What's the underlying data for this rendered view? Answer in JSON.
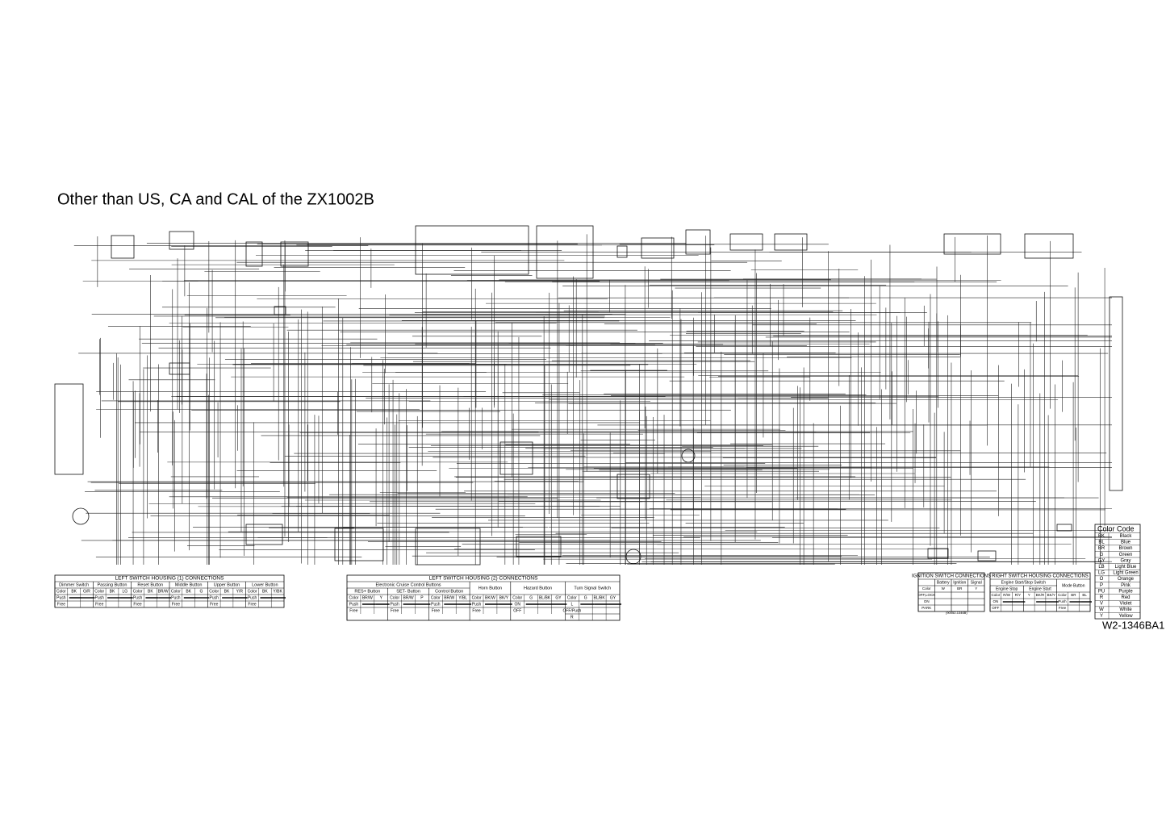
{
  "title": "Other than US, CA and CAL of the ZX1002B",
  "drawing_code": "W2-1346BA1",
  "part_number": "(90052-1346B)",
  "color_code": {
    "title": "Color Code",
    "rows": [
      [
        "BK",
        "Black"
      ],
      [
        "BL",
        "Blue"
      ],
      [
        "BR",
        "Brown"
      ],
      [
        "G",
        "Green"
      ],
      [
        "GY",
        "Gray"
      ],
      [
        "LB",
        "Light Blue"
      ],
      [
        "LG",
        "Light Green"
      ],
      [
        "O",
        "Orange"
      ],
      [
        "P",
        "Pink"
      ],
      [
        "PU",
        "Purple"
      ],
      [
        "R",
        "Red"
      ],
      [
        "V",
        "Violet"
      ],
      [
        "W",
        "White"
      ],
      [
        "Y",
        "Yellow"
      ]
    ]
  },
  "left_switch_1": {
    "title": "LEFT SWITCH HOUSING (1) CONNECTIONS",
    "groups": [
      {
        "name": "Dimmer Switch",
        "rows": [
          [
            "Color",
            "BK",
            "G/R"
          ],
          [
            "Push",
            null,
            null
          ],
          [
            "Free",
            null,
            null
          ]
        ]
      },
      {
        "name": "Passing Button",
        "rows": [
          [
            "Color",
            "BK",
            "LG"
          ],
          [
            "Push",
            null,
            null
          ],
          [
            "Free",
            null,
            null
          ]
        ]
      },
      {
        "name": "Reset Button",
        "rows": [
          [
            "Color",
            "BK",
            "BR/W"
          ],
          [
            "Push",
            null,
            null
          ],
          [
            "Free",
            null,
            null
          ]
        ]
      },
      {
        "name": "Middle Button",
        "rows": [
          [
            "Color",
            "BK",
            "G"
          ],
          [
            "Push",
            null,
            null
          ],
          [
            "Free",
            null,
            null
          ]
        ]
      },
      {
        "name": "Upper Button",
        "rows": [
          [
            "Color",
            "BK",
            "Y/R"
          ],
          [
            "Push",
            null,
            null
          ],
          [
            "Free",
            null,
            null
          ]
        ]
      },
      {
        "name": "Lower Button",
        "rows": [
          [
            "Color",
            "BK",
            "Y/BK"
          ],
          [
            "Push",
            null,
            null
          ],
          [
            "Free",
            null,
            null
          ]
        ]
      }
    ]
  },
  "left_switch_2": {
    "title": "LEFT SWITCH HOUSING (2) CONNECTIONS",
    "section": "Electronic Cruise Control Buttons",
    "groups": [
      {
        "name": "RES+ Button",
        "rows": [
          [
            "Color",
            "BR/W",
            "Y"
          ],
          [
            "Push",
            null,
            null
          ],
          [
            "Free",
            null,
            null
          ]
        ]
      },
      {
        "name": "SET- Button",
        "rows": [
          [
            "Color",
            "BR/W",
            "P"
          ],
          [
            "Push",
            null,
            null
          ],
          [
            "Free",
            null,
            null
          ]
        ]
      },
      {
        "name": "Control Button",
        "rows": [
          [
            "Color",
            "BR/W",
            "Y/BL"
          ],
          [
            "Push",
            null,
            null
          ],
          [
            "Free",
            null,
            null
          ]
        ]
      },
      {
        "name": "Horn Button",
        "rows": [
          [
            "Color",
            "BK/W",
            "BK/Y"
          ],
          [
            "Push",
            null,
            null
          ],
          [
            "Free",
            null,
            null
          ]
        ]
      },
      {
        "name": "Hazard Button",
        "rows": [
          [
            "Color",
            "G",
            "BL/BK",
            "GY"
          ],
          [
            "ON",
            null,
            null,
            null
          ],
          [
            "OFF",
            null,
            null,
            null
          ]
        ]
      },
      {
        "name": "Turn Signal Switch",
        "rows": [
          [
            "Color",
            "G",
            "BL/BK",
            "GY"
          ],
          [
            "L",
            null,
            null,
            null
          ],
          [
            "OFF/Push",
            null,
            null,
            null
          ],
          [
            "R",
            null,
            null,
            null
          ]
        ]
      }
    ]
  },
  "ignition_switch": {
    "title": "IGNITION SWITCH CONNECTIONS",
    "groups": [
      {
        "name": null,
        "rows": [
          [
            "Color"
          ],
          [
            "OFF,LOCK"
          ],
          [
            "ON"
          ],
          [
            "PARK"
          ]
        ]
      },
      {
        "name": "Battery",
        "rows": [
          [
            "W"
          ],
          [
            null
          ],
          [
            null
          ],
          [
            null
          ]
        ]
      },
      {
        "name": "Ignition",
        "rows": [
          [
            "BR"
          ],
          [
            null
          ],
          [
            null
          ],
          [
            null
          ]
        ]
      },
      {
        "name": "Signal",
        "rows": [
          [
            "Y"
          ],
          [
            null
          ],
          [
            null
          ],
          [
            null
          ]
        ]
      }
    ]
  },
  "right_switch": {
    "title": "RIGHT SWITCH HOUSING CONNECTIONS",
    "section": "Engine Start/Stop Switch",
    "groups": [
      {
        "name": "Engine Stop",
        "rows": [
          [
            "Color",
            "R/W",
            "R/Y"
          ],
          [
            "ON",
            null,
            null
          ],
          [
            "OFF",
            null,
            null
          ]
        ]
      },
      {
        "name": "Engine Start",
        "rows": [
          [
            "Y",
            "BK/R",
            "BK/Y"
          ],
          [
            null,
            null,
            null
          ],
          [
            null,
            null,
            null
          ]
        ]
      },
      {
        "name": "Mode Button",
        "rows": [
          [
            "Color",
            "BR",
            "BL"
          ],
          [
            "Push",
            null,
            null
          ],
          [
            "Free",
            null,
            null
          ]
        ]
      }
    ]
  }
}
